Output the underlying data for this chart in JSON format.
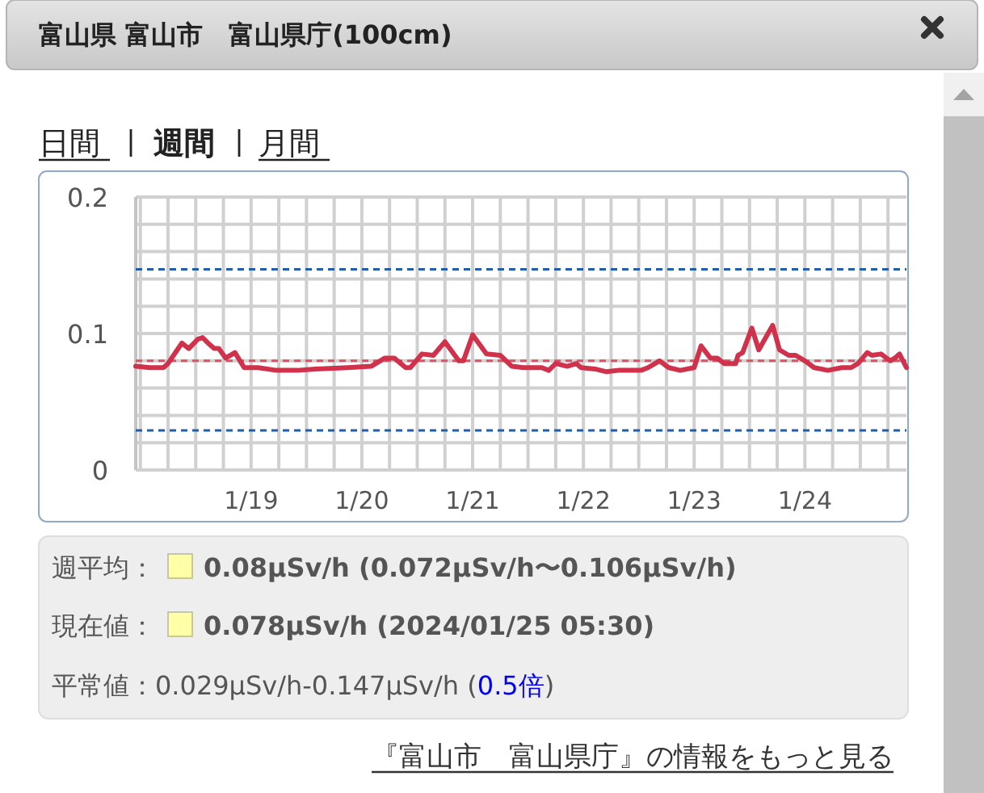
{
  "chart_data": {
    "type": "line",
    "title": "富山県 富山市　富山県庁(100cm)",
    "annotations": [
      "日間",
      "週間",
      "月間",
      "週平均：",
      "0.08μSv/h (0.072μSv/h〜0.106μSv/h)",
      "現在値：",
      "0.078μSv/h (2024/01/25 05:30)",
      "平常値：0.029μSv/h-0.147μSv/h (",
      "0.5倍",
      ")",
      "『富山市　富山県庁』の情報をもっと見る"
    ],
    "x": [
      "2024-01-17T23:00",
      "2024-01-18T02:00",
      "2024-01-18T05:00",
      "2024-01-18T06:00",
      "2024-01-18T08:00",
      "2024-01-18T09:00",
      "2024-01-18T10:30",
      "2024-01-18T12:30",
      "2024-01-18T13:30",
      "2024-01-18T15:00",
      "2024-01-18T16:00",
      "2024-01-18T17:00",
      "2024-01-18T18:30",
      "2024-01-18T20:30",
      "2024-01-18T22:30",
      "2024-01-19T01:30",
      "2024-01-19T05:30",
      "2024-01-19T10:00",
      "2024-01-19T14:00",
      "2024-01-19T21:00",
      "2024-01-20T02:00",
      "2024-01-20T05:00",
      "2024-01-20T07:00",
      "2024-01-20T09:30",
      "2024-01-20T10:30",
      "2024-01-20T13:00",
      "2024-01-20T15:30",
      "2024-01-20T18:00",
      "2024-01-20T21:00",
      "2024-01-20T22:00",
      "2024-01-21T00:00",
      "2024-01-21T03:00",
      "2024-01-21T06:00",
      "2024-01-21T08:30",
      "2024-01-21T11:00",
      "2024-01-21T13:00",
      "2024-01-21T15:00",
      "2024-01-21T16:30",
      "2024-01-21T18:00",
      "2024-01-21T20:30",
      "2024-01-21T22:30",
      "2024-01-21T23:30",
      "2024-01-22T02:30",
      "2024-01-22T05:00",
      "2024-01-22T07:30",
      "2024-01-22T12:30",
      "2024-01-22T14:00",
      "2024-01-22T16:30",
      "2024-01-22T18:30",
      "2024-01-22T21:00",
      "2024-01-23T00:00",
      "2024-01-23T01:30",
      "2024-01-23T03:30",
      "2024-01-23T05:00",
      "2024-01-23T06:30",
      "2024-01-23T09:00",
      "2024-01-23T09:30",
      "2024-01-23T10:30",
      "2024-01-23T12:30",
      "2024-01-23T14:00",
      "2024-01-23T17:00",
      "2024-01-23T18:30",
      "2024-01-23T20:30",
      "2024-01-23T22:00",
      "2024-01-24T00:00",
      "2024-01-24T02:00",
      "2024-01-24T05:00",
      "2024-01-24T08:00",
      "2024-01-24T10:00",
      "2024-01-24T11:30",
      "2024-01-24T13:30",
      "2024-01-24T14:30",
      "2024-01-24T16:30",
      "2024-01-24T18:30",
      "2024-01-24T19:30",
      "2024-01-24T20:30",
      "2024-01-24T22:00"
    ],
    "series": [
      {
        "color": "#d0324b",
        "values": [
          0.076,
          0.075,
          0.075,
          0.078,
          0.088,
          0.093,
          0.089,
          0.096,
          0.097,
          0.092,
          0.089,
          0.089,
          0.082,
          0.086,
          0.075,
          0.075,
          0.073,
          0.073,
          0.074,
          0.075,
          0.076,
          0.082,
          0.082,
          0.075,
          0.075,
          0.085,
          0.084,
          0.094,
          0.08,
          0.08,
          0.099,
          0.085,
          0.084,
          0.076,
          0.075,
          0.075,
          0.075,
          0.073,
          0.078,
          0.076,
          0.078,
          0.075,
          0.074,
          0.072,
          0.073,
          0.073,
          0.075,
          0.08,
          0.075,
          0.073,
          0.075,
          0.091,
          0.082,
          0.082,
          0.078,
          0.078,
          0.084,
          0.086,
          0.104,
          0.088,
          0.106,
          0.088,
          0.084,
          0.084,
          0.08,
          0.075,
          0.073,
          0.075,
          0.075,
          0.078,
          0.086,
          0.084,
          0.085,
          0.08,
          0.082,
          0.085,
          0.075
        ]
      }
    ],
    "ref_lines": [
      {
        "axis": "y",
        "value": 0.147,
        "color": "#1f5fa8",
        "line_style": "dashed"
      },
      {
        "axis": "y",
        "value": 0.029,
        "color": "#1f5fa8",
        "line_style": "dashed"
      },
      {
        "axis": "y",
        "value": 0.08,
        "color": "#e05060",
        "line_style": "dashed"
      }
    ],
    "xlim": [
      "2024-01-17T23:00",
      "2024-01-24T22:00"
    ],
    "xticks": [
      {
        "value": "2024-01-18T00:00",
        "label": null
      },
      {
        "value": "2024-01-18T06:00",
        "label": null
      },
      {
        "value": "2024-01-18T12:00",
        "label": null
      },
      {
        "value": "2024-01-18T18:00",
        "label": null
      },
      {
        "value": "2024-01-19T00:00",
        "label": "1/19"
      },
      {
        "value": "2024-01-19T06:00",
        "label": null
      },
      {
        "value": "2024-01-19T12:00",
        "label": null
      },
      {
        "value": "2024-01-19T18:00",
        "label": null
      },
      {
        "value": "2024-01-20T00:00",
        "label": "1/20"
      },
      {
        "value": "2024-01-20T06:00",
        "label": null
      },
      {
        "value": "2024-01-20T12:00",
        "label": null
      },
      {
        "value": "2024-01-20T18:00",
        "label": null
      },
      {
        "value": "2024-01-21T00:00",
        "label": "1/21"
      },
      {
        "value": "2024-01-21T06:00",
        "label": null
      },
      {
        "value": "2024-01-21T12:00",
        "label": null
      },
      {
        "value": "2024-01-21T18:00",
        "label": null
      },
      {
        "value": "2024-01-22T00:00",
        "label": "1/22"
      },
      {
        "value": "2024-01-22T06:00",
        "label": null
      },
      {
        "value": "2024-01-22T12:00",
        "label": null
      },
      {
        "value": "2024-01-22T18:00",
        "label": null
      },
      {
        "value": "2024-01-23T00:00",
        "label": "1/23"
      },
      {
        "value": "2024-01-23T06:00",
        "label": null
      },
      {
        "value": "2024-01-23T12:00",
        "label": null
      },
      {
        "value": "2024-01-23T18:00",
        "label": null
      },
      {
        "value": "2024-01-24T00:00",
        "label": "1/24"
      },
      {
        "value": "2024-01-24T06:00",
        "label": null
      },
      {
        "value": "2024-01-24T12:00",
        "label": null
      },
      {
        "value": "2024-01-24T18:00",
        "label": null
      }
    ],
    "ylim": [
      0,
      0.2
    ],
    "yticks": [
      0,
      {
        "value": 0.02,
        "label": null
      },
      {
        "value": 0.04,
        "label": null
      },
      {
        "value": 0.06,
        "label": null
      },
      {
        "value": 0.08,
        "label": null
      },
      0.1,
      {
        "value": 0.12,
        "label": null
      },
      {
        "value": 0.14,
        "label": null
      },
      {
        "value": 0.16,
        "label": null
      },
      {
        "value": 0.18,
        "label": null
      },
      0.2
    ],
    "grid": true
  }
}
